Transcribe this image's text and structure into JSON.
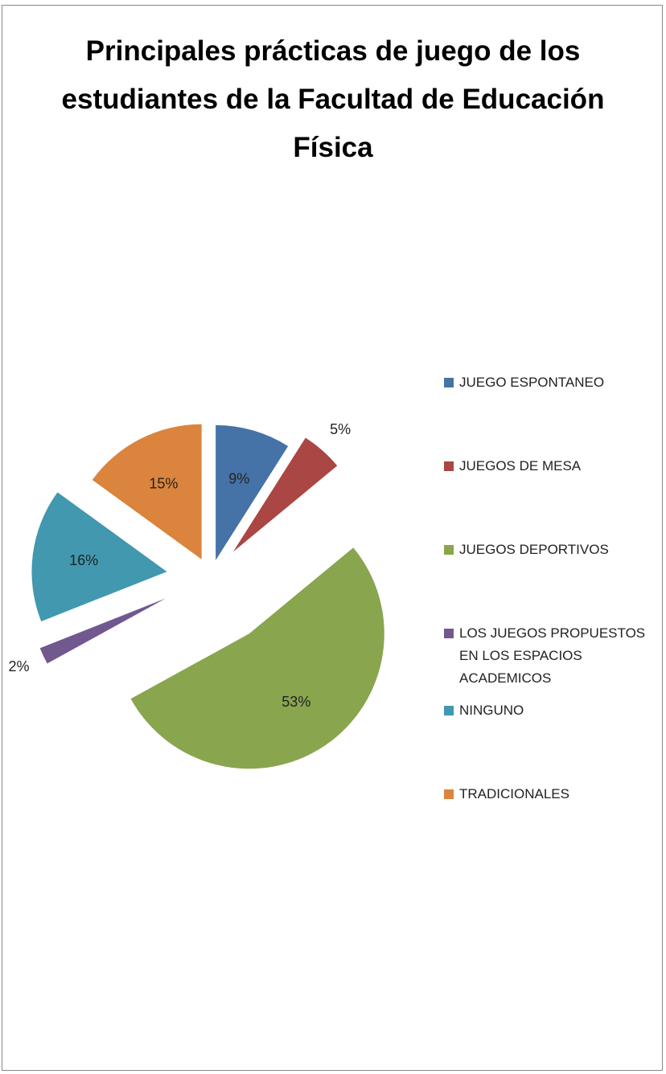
{
  "chart_data": {
    "type": "pie",
    "title": "Principales prácticas de juego de los estudiantes de la Facultad de Educación Física",
    "categories": [
      "JUEGO ESPONTANEO",
      "JUEGOS DE MESA",
      "JUEGOS DEPORTIVOS",
      "LOS JUEGOS PROPUESTOS EN LOS ESPACIOS ACADEMICOS",
      "NINGUNO",
      "TRADICIONALES"
    ],
    "values": [
      9,
      5,
      53,
      2,
      16,
      15
    ],
    "value_labels": [
      "9%",
      "5%",
      "53%",
      "2%",
      "16%",
      "15%"
    ],
    "colors": [
      "#4572a7",
      "#aa4643",
      "#89a54e",
      "#71588f",
      "#4198af",
      "#db843d"
    ],
    "legend": "right"
  }
}
